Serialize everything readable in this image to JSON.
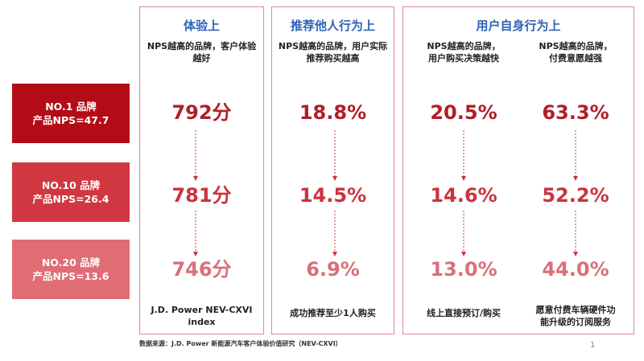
{
  "groups": [
    {
      "title": "体验上"
    },
    {
      "title": "推荐他人行为上"
    },
    {
      "title": "用户自身行为上"
    }
  ],
  "rows": [
    {
      "label_line1": "NO.1 品牌",
      "label_line2": "产品NPS=47.7"
    },
    {
      "label_line1": "NO.10 品牌",
      "label_line2": "产品NPS=26.4"
    },
    {
      "label_line1": "NO.20 品牌",
      "label_line2": "产品NPS=13.6"
    }
  ],
  "columns": [
    {
      "desc_line1": "NPS越高的品牌，客户体验",
      "desc_line2": "越好",
      "values": [
        "792分",
        "781分",
        "746分"
      ],
      "foot_line1": "J.D. Power NEV-CXVI",
      "foot_line2": "index"
    },
    {
      "desc_line1": "NPS越高的品牌，用户实际",
      "desc_line2": "推荐购买越高",
      "values": [
        "18.8%",
        "14.5%",
        "6.9%"
      ],
      "foot_line1": "成功推荐至少1人购买",
      "foot_line2": ""
    },
    {
      "desc_line1": "NPS越高的品牌，",
      "desc_line2": "用户购买决策越快",
      "values": [
        "20.5%",
        "14.6%",
        "13.0%"
      ],
      "foot_line1": "线上直接预订/购买",
      "foot_line2": ""
    },
    {
      "desc_line1": "NPS越高的品牌，",
      "desc_line2": "付费意愿越强",
      "values": [
        "63.3%",
        "52.2%",
        "44.0%"
      ],
      "foot_line1": "愿意付费车辆硬件功",
      "foot_line2": "能升级的订阅服务"
    }
  ],
  "footer": {
    "source": "数据来源：J.D. Power 新能源汽车客户体验价值研究（NEV-CXVI）",
    "page": "1"
  },
  "colors": {
    "title_blue": "#2d63b8",
    "value_row1": "#b01e28",
    "value_row2": "#c9343e",
    "value_row3": "#d9707a",
    "rank1_bg": "#b40c16",
    "rank2_bg": "#d13740",
    "rank3_bg": "#e06c74"
  }
}
